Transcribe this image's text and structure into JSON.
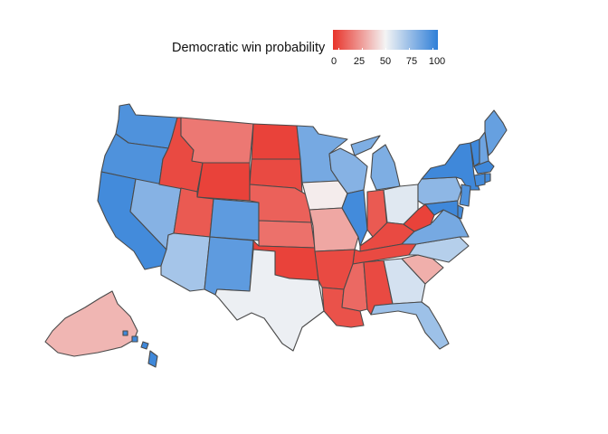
{
  "legend": {
    "title": "Democratic win probability",
    "ticks": [
      "0",
      "25",
      "50",
      "75",
      "100"
    ],
    "colors": [
      "#e8332a",
      "#f4f4f4",
      "#2f7fd8"
    ]
  },
  "states": {
    "wa": 92,
    "or": 92,
    "ca": 95,
    "nv": 78,
    "id": 6,
    "mt": 18,
    "wy": 4,
    "ut": 10,
    "az": 70,
    "co": 88,
    "nm": 88,
    "nd": 4,
    "sd": 6,
    "ne": 12,
    "ks": 16,
    "ok": 4,
    "tx": 52,
    "mn": 82,
    "ia": 48,
    "mo": 30,
    "ar": 6,
    "la": 8,
    "wi": 78,
    "il": 95,
    "mi": 80,
    "in": 10,
    "oh": 55,
    "ky": 6,
    "tn": 6,
    "ms": 14,
    "al": 6,
    "ga": 58,
    "fl": 72,
    "sc": 32,
    "nc": 66,
    "va": 82,
    "wv": 4,
    "pa": 76,
    "ny": 96,
    "vt": 96,
    "nh": 84,
    "me": 86,
    "ma": 96,
    "ct": 95,
    "ri": 95,
    "nj": 92,
    "de": 95,
    "md": 96,
    "ak": 34,
    "hi": 96
  }
}
